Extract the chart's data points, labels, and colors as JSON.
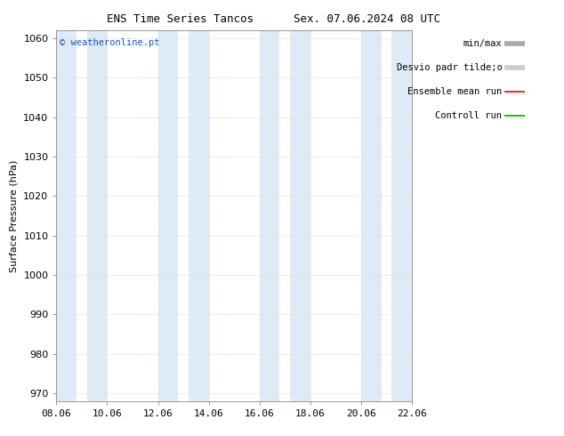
{
  "title_left": "ENS Time Series Tancos",
  "title_right": "Sex. 07.06.2024 08 UTC",
  "ylabel": "Surface Pressure (hPa)",
  "ylim": [
    968,
    1062
  ],
  "yticks": [
    970,
    980,
    990,
    1000,
    1010,
    1020,
    1030,
    1040,
    1050,
    1060
  ],
  "xtick_labels": [
    "08.06",
    "10.06",
    "12.06",
    "14.06",
    "16.06",
    "18.06",
    "20.06",
    "22.06"
  ],
  "xtick_positions": [
    0,
    2,
    4,
    6,
    8,
    10,
    12,
    14
  ],
  "xlim": [
    0,
    14
  ],
  "shaded_bands": [
    {
      "x_start": 0,
      "x_end": 0.8,
      "color": "#deeaf5"
    },
    {
      "x_start": 1.2,
      "x_end": 2.0,
      "color": "#deeaf5"
    },
    {
      "x_start": 4.0,
      "x_end": 4.8,
      "color": "#deeaf5"
    },
    {
      "x_start": 5.2,
      "x_end": 6.0,
      "color": "#deeaf5"
    },
    {
      "x_start": 8.0,
      "x_end": 8.8,
      "color": "#deeaf5"
    },
    {
      "x_start": 9.2,
      "x_end": 10.0,
      "color": "#deeaf5"
    },
    {
      "x_start": 12.0,
      "x_end": 12.8,
      "color": "#deeaf5"
    },
    {
      "x_start": 13.2,
      "x_end": 14.0,
      "color": "#deeaf5"
    }
  ],
  "copyright_text": "© weatheronline.pt",
  "copyright_color": "#1155cc",
  "bg_color": "#ffffff",
  "plot_bg_color": "#ffffff",
  "band_color": "#deeaf5",
  "title_fontsize": 9,
  "axis_fontsize": 8,
  "tick_fontsize": 8,
  "legend_line1_color": "#aaaaaa",
  "legend_line2_color": "#cccccc",
  "legend_red": "#ff0000",
  "legend_green": "#00aa00"
}
